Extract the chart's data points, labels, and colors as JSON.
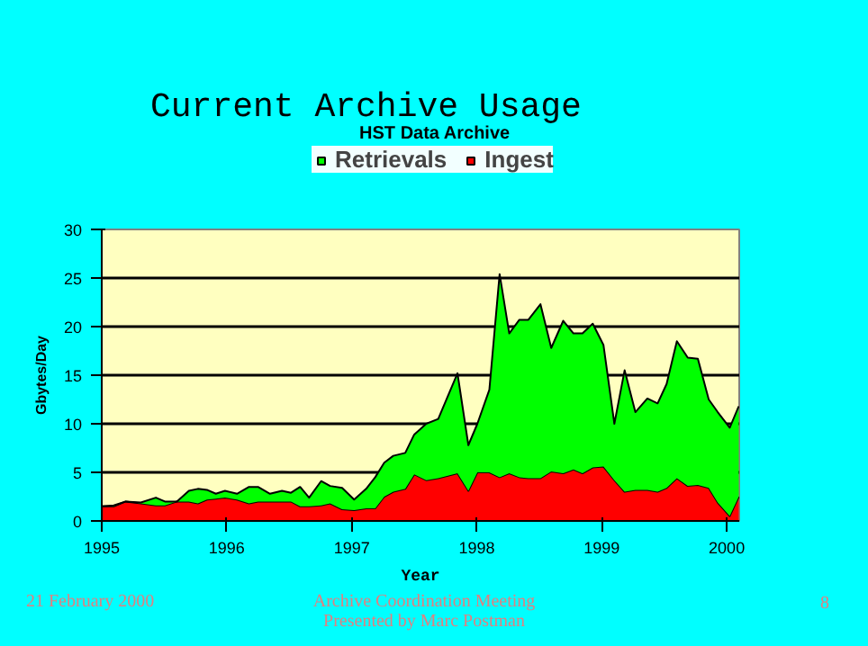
{
  "chart_data": {
    "type": "area",
    "stacked": true,
    "title": "Current Archive Usage",
    "subtitle": "HST Data Archive",
    "xlabel": "Year",
    "ylabel": "Gbytes/Day",
    "x": [
      1995.0,
      1995.096,
      1995.192,
      1995.313,
      1995.433,
      1995.505,
      1995.601,
      1995.697,
      1995.769,
      1995.841,
      1995.913,
      1995.986,
      1996.082,
      1996.178,
      1996.25,
      1996.346,
      1996.442,
      1996.514,
      1996.587,
      1996.659,
      1996.755,
      1996.827,
      1996.923,
      1997.019,
      1997.115,
      1997.188,
      1997.26,
      1997.332,
      1997.428,
      1997.5,
      1997.596,
      1997.692,
      1997.846,
      1997.933,
      1998.005,
      1998.101,
      1998.183,
      1998.26,
      1998.341,
      1998.413,
      1998.51,
      1998.596,
      1998.692,
      1998.774,
      1998.846,
      1998.928,
      1999.014,
      1999.101,
      1999.183,
      1999.269,
      1999.365,
      1999.447,
      1999.519,
      1999.601,
      1999.688,
      1999.769,
      1999.856,
      1999.928,
      2000.024,
      2000.096
    ],
    "series": [
      {
        "name": "Ingest",
        "color": "#ff0000",
        "values": [
          1.5,
          1.5,
          2.0,
          1.8,
          1.6,
          1.6,
          2.0,
          2.0,
          1.8,
          2.2,
          2.3,
          2.4,
          2.2,
          1.8,
          2.0,
          2.0,
          2.0,
          2.0,
          1.5,
          1.5,
          1.6,
          1.8,
          1.2,
          1.1,
          1.3,
          1.3,
          2.5,
          3.0,
          3.3,
          4.8,
          4.2,
          4.4,
          4.9,
          3.1,
          5.0,
          5.0,
          4.5,
          4.9,
          4.5,
          4.4,
          4.4,
          5.1,
          4.9,
          5.3,
          4.9,
          5.5,
          5.6,
          4.2,
          3.0,
          3.2,
          3.2,
          3.0,
          3.4,
          4.4,
          3.6,
          3.7,
          3.4,
          1.9,
          0.5,
          2.5
        ]
      },
      {
        "name": "Retrievals",
        "color": "#00ff00",
        "values": [
          0,
          0.1,
          0,
          0.1,
          0.8,
          0.4,
          0,
          1.1,
          1.5,
          1.0,
          0.5,
          0.7,
          0.6,
          1.7,
          1.5,
          0.8,
          1.1,
          0.9,
          2.0,
          0.9,
          2.5,
          1.8,
          2.2,
          1.1,
          2.0,
          3.2,
          3.5,
          3.7,
          3.7,
          4.1,
          5.8,
          6.1,
          10.3,
          4.7,
          5.0,
          8.5,
          20.9,
          14.4,
          16.2,
          16.3,
          17.9,
          12.7,
          15.7,
          14.0,
          14.4,
          14.8,
          12.5,
          5.8,
          12.5,
          8.0,
          9.4,
          9.1,
          10.7,
          14.1,
          13.2,
          13.0,
          9.1,
          9.3,
          9.1,
          9.3
        ]
      }
    ],
    "xlim": [
      1995,
      2000.1
    ],
    "xticks": [
      1995,
      1996,
      1997,
      1998,
      1999,
      2000
    ],
    "ylim": [
      0,
      30
    ],
    "yticks": [
      0,
      5,
      10,
      15,
      20,
      25,
      30
    ],
    "grid": "y",
    "legend": "top",
    "annotations": [
      "21 February 2000",
      "Archive Coordination Meeting\nPresented by Marc Postman",
      "8"
    ]
  }
}
